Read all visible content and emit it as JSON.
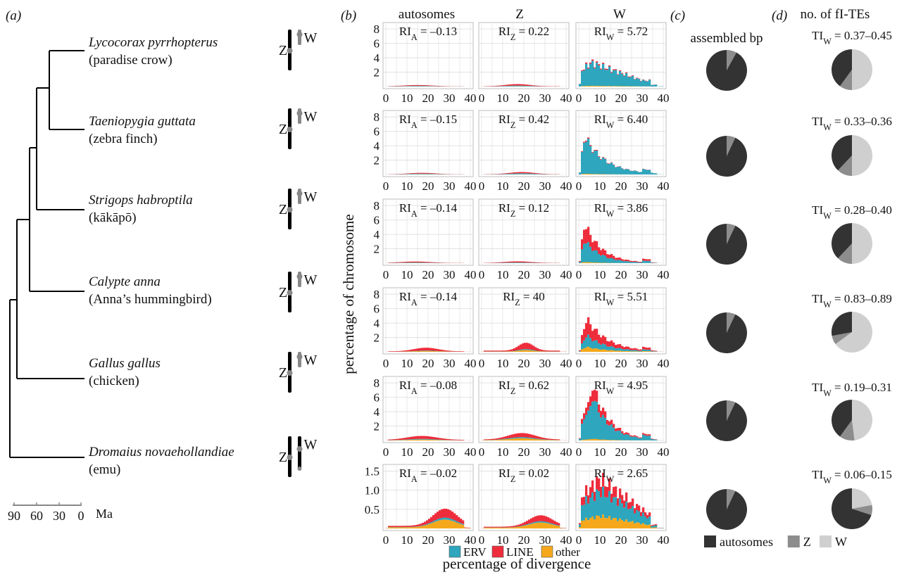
{
  "panels": {
    "a": "(a)",
    "b": "(b)",
    "c": "(c)",
    "d": "(d)"
  },
  "tree": {
    "species": [
      {
        "latin": "Lycocorax pyrrhopterus",
        "common": "(paradise crow)"
      },
      {
        "latin": "Taeniopygia guttata",
        "common": "(zebra finch)"
      },
      {
        "latin": "Strigops habroptila",
        "common": "(kākāpō)"
      },
      {
        "latin": "Calypte anna",
        "common": "(Anna’s hummingbird)"
      },
      {
        "latin": "Gallus gallus",
        "common": "(chicken)"
      },
      {
        "latin": "Dromaius novaehollandiae",
        "common": "(emu)"
      }
    ],
    "z_label": "Z",
    "w_label": "W",
    "scale_ticks": [
      "90",
      "60",
      "30",
      "0"
    ],
    "scale_unit": "Ma"
  },
  "col_headers": [
    "autosomes",
    "Z",
    "W"
  ],
  "pie_c_title": "assembled bp",
  "pie_d_title": "no. of fI-TEs",
  "ylabel": "percentage of chromosome",
  "xlabel": "percentage of divergence",
  "x_ticks": [
    "0",
    "10",
    "20",
    "30",
    "40"
  ],
  "legend": [
    {
      "label": "ERV",
      "color": "#2ea6bd"
    },
    {
      "label": "LINE",
      "color": "#ee2d3c"
    },
    {
      "label": "other",
      "color": "#f6a81c"
    }
  ],
  "pie_legend": [
    {
      "label": "autosomes",
      "color": "#333333"
    },
    {
      "label": "Z",
      "color": "#8d8d8d"
    },
    {
      "label": "W",
      "color": "#cfcfcf"
    }
  ],
  "chart_data": {
    "type": "area",
    "stacked": true,
    "x_range": [
      0,
      40
    ],
    "bin_width": 1,
    "rows": [
      {
        "y_ticks": [
          "2",
          "4",
          "6",
          "8"
        ],
        "y_tick_values": [
          2,
          4,
          6,
          8
        ],
        "ymax": 8.6,
        "ri": [
          "RI_A = –0.13",
          "RI_Z = 0.22",
          "RI_W = 5.72"
        ],
        "ti": "TI_W = 0.37–0.45",
        "pie_c": [
          0.92,
          0.08,
          0.0
        ],
        "pie_d": [
          0.4,
          0.1,
          0.5
        ],
        "hist": [
          {
            "peak": 15,
            "scale": 0.18,
            "spread": 10,
            "split": [
              0.35,
              0.5,
              0.15
            ]
          },
          {
            "peak": 17,
            "scale": 0.3,
            "spread": 8,
            "split": [
              0.3,
              0.6,
              0.1
            ]
          },
          {
            "peak": 6,
            "scale": 3.4,
            "spread": 18,
            "split": [
              0.92,
              0.05,
              0.03
            ],
            "shape": "broad"
          }
        ]
      },
      {
        "y_ticks": [
          "2",
          "4",
          "6",
          "8"
        ],
        "y_tick_values": [
          2,
          4,
          6,
          8
        ],
        "ymax": 8.6,
        "ri": [
          "RI_A = –0.15",
          "RI_Z = 0.42",
          "RI_W = 6.40"
        ],
        "ti": "TI_W = 0.33–0.36",
        "pie_c": [
          0.93,
          0.07,
          0.0
        ],
        "pie_d": [
          0.38,
          0.12,
          0.5
        ],
        "hist": [
          {
            "peak": 17,
            "scale": 0.2,
            "spread": 9,
            "split": [
              0.4,
              0.45,
              0.15
            ]
          },
          {
            "peak": 19,
            "scale": 0.3,
            "spread": 8,
            "split": [
              0.4,
              0.5,
              0.1
            ]
          },
          {
            "peak": 3,
            "scale": 5.2,
            "spread": 10,
            "split": [
              0.95,
              0.03,
              0.02
            ],
            "shape": "decay"
          }
        ]
      },
      {
        "y_ticks": [
          "2",
          "4",
          "6",
          "8"
        ],
        "y_tick_values": [
          2,
          4,
          6,
          8
        ],
        "ymax": 8.6,
        "ri": [
          "RI_A = –0.14",
          "RI_Z = 0.12",
          "RI_W = 3.86"
        ],
        "ti": "TI_W = 0.28–0.40",
        "pie_c": [
          0.93,
          0.07,
          0.0
        ],
        "pie_d": [
          0.38,
          0.12,
          0.5
        ],
        "hist": [
          {
            "peak": 14,
            "scale": 0.2,
            "spread": 10,
            "split": [
              0.3,
              0.55,
              0.15
            ]
          },
          {
            "peak": 17,
            "scale": 0.22,
            "spread": 9,
            "split": [
              0.3,
              0.6,
              0.1
            ]
          },
          {
            "peak": 3,
            "scale": 5.3,
            "spread": 8,
            "split": [
              0.55,
              0.42,
              0.03
            ],
            "shape": "decay"
          }
        ]
      },
      {
        "y_ticks": [
          "2",
          "4",
          "6",
          "8"
        ],
        "y_tick_values": [
          2,
          4,
          6,
          8
        ],
        "ymax": 8.6,
        "ri": [
          "RI_A = –0.14",
          "RI_Z = 40",
          "RI_W = 5.51"
        ],
        "ti": "TI_W = 0.83–0.89",
        "pie_c": [
          0.93,
          0.07,
          0.0
        ],
        "pie_d": [
          0.28,
          0.07,
          0.65
        ],
        "hist": [
          {
            "peak": 19,
            "scale": 0.5,
            "spread": 8,
            "split": [
              0.1,
              0.7,
              0.2
            ]
          },
          {
            "peak": 21,
            "scale": 1.1,
            "spread": 5,
            "split": [
              0.1,
              0.7,
              0.2
            ]
          },
          {
            "peak": 4,
            "scale": 4.4,
            "spread": 10,
            "split": [
              0.35,
              0.5,
              0.15
            ],
            "shape": "decay"
          }
        ]
      },
      {
        "y_ticks": [
          "2",
          "4",
          "6",
          "8"
        ],
        "y_tick_values": [
          2,
          4,
          6,
          8
        ],
        "ymax": 8.6,
        "ri": [
          "RI_A = –0.08",
          "RI_Z = 0.62",
          "RI_W = 4.95"
        ],
        "ti": "TI_W = 0.19–0.31",
        "pie_c": [
          0.93,
          0.07,
          0.0
        ],
        "pie_d": [
          0.4,
          0.12,
          0.48
        ],
        "hist": [
          {
            "peak": 17,
            "scale": 0.55,
            "spread": 10,
            "split": [
              0.15,
              0.65,
              0.2
            ]
          },
          {
            "peak": 19,
            "scale": 0.9,
            "spread": 9,
            "split": [
              0.15,
              0.55,
              0.3
            ]
          },
          {
            "peak": 7,
            "scale": 7.3,
            "spread": 8,
            "split": [
              0.75,
              0.22,
              0.03
            ],
            "shape": "decay"
          }
        ]
      },
      {
        "y_ticks": [
          "0.5",
          "1.0",
          "1.5"
        ],
        "y_tick_values": [
          0.5,
          1.0,
          1.5
        ],
        "ymax": 1.62,
        "ri": [
          "RI_A = –0.02",
          "RI_Z = 0.02",
          "RI_W = 2.65"
        ],
        "ti": "TI_W = 0.06–0.15",
        "pie_c": [
          0.93,
          0.07,
          0.0
        ],
        "pie_d": [
          0.7,
          0.08,
          0.22
        ],
        "hist": [
          {
            "peak": 28,
            "scale": 0.45,
            "spread": 8,
            "split": [
              0.1,
              0.45,
              0.45
            ]
          },
          {
            "peak": 28,
            "scale": 0.3,
            "spread": 8,
            "split": [
              0.1,
              0.45,
              0.45
            ]
          },
          {
            "peak": 10,
            "scale": 1.3,
            "spread": 18,
            "split": [
              0.5,
              0.25,
              0.25
            ],
            "shape": "broad"
          }
        ]
      }
    ]
  }
}
